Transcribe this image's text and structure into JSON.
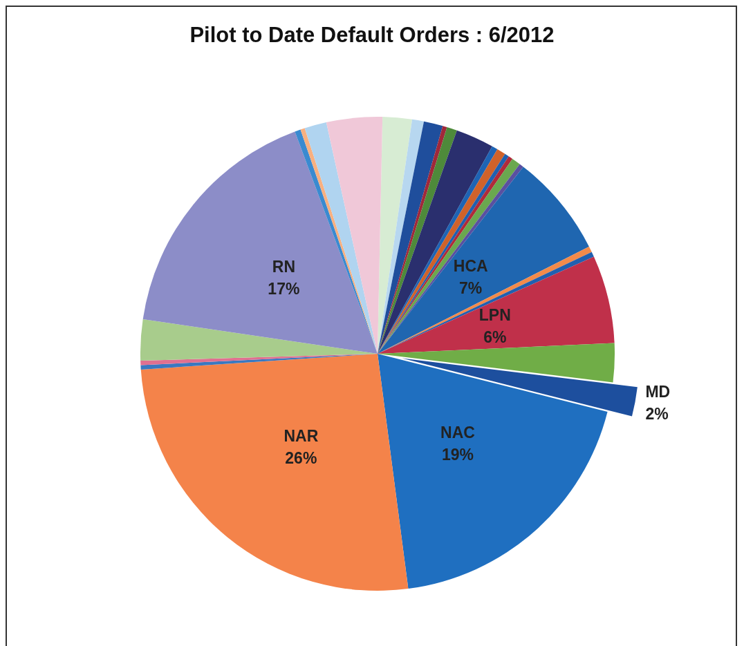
{
  "chart_data": {
    "type": "pie",
    "title": "Pilot to Date Default Orders : 6/2012",
    "categories": [
      null,
      null,
      null,
      null,
      null,
      null,
      null,
      null,
      null,
      null,
      null,
      null,
      "HCA",
      null,
      null,
      "LPN",
      null,
      "MD",
      "NAC",
      "NAR",
      null,
      null,
      null,
      "RN",
      null,
      null,
      null,
      null
    ],
    "values": [
      2,
      0.8,
      1.3,
      0.3,
      0.7,
      2.6,
      0.4,
      0.6,
      0.3,
      0.3,
      0.6,
      0.3,
      7,
      0.4,
      0.35,
      6,
      2.65,
      2,
      19,
      26,
      0.3,
      0.3,
      2.8,
      17,
      0.4,
      0.3,
      1.5,
      3.8
    ],
    "value_labels": [
      null,
      null,
      null,
      null,
      null,
      null,
      null,
      null,
      null,
      null,
      null,
      null,
      "7%",
      null,
      null,
      "6%",
      null,
      "2%",
      "19%",
      "26%",
      null,
      null,
      null,
      "17%",
      null,
      null,
      null,
      null
    ],
    "colors": [
      "#d7ecd3",
      "#b7d7f0",
      "#1f4e9c",
      "#a0283a",
      "#4e8a3a",
      "#2a2f6e",
      "#1e64b4",
      "#d0622a",
      "#2060b0",
      "#b02a3a",
      "#6aa84f",
      "#5a50a0",
      "#1f66b0",
      "#f28a4a",
      "#2060b0",
      "#c0304a",
      "#70ad47",
      "#1d4f9e",
      "#1f6fc0",
      "#f4834a",
      "#3a78c0",
      "#e07090",
      "#a8cc8c",
      "#8c8dc8",
      "#3a8ad0",
      "#f8b080",
      "#b0d4f0",
      "#f0c8d8"
    ],
    "legend": false
  }
}
